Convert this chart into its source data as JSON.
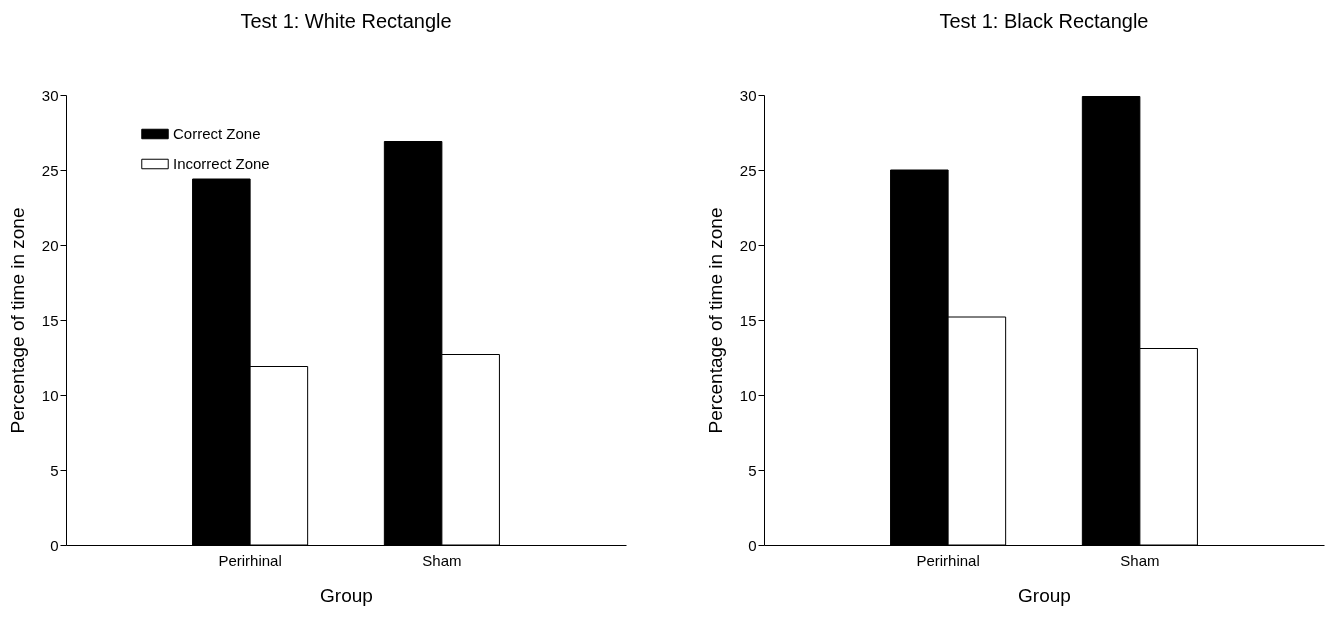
{
  "chart_data": [
    {
      "type": "bar",
      "title": "Test 1: White Rectangle",
      "xlabel": "Group",
      "ylabel": "Percentage of time in zone",
      "categories": [
        "Perirhinal",
        "Sham"
      ],
      "series": [
        {
          "name": "Correct Zone",
          "color": "#000000",
          "values": [
            24.4,
            26.9
          ]
        },
        {
          "name": "Incorrect Zone",
          "color": "#ffffff",
          "values": [
            11.9,
            12.7
          ]
        }
      ],
      "ylim": [
        0,
        30
      ],
      "yticks": [
        0,
        5,
        10,
        15,
        20,
        25,
        30
      ],
      "grid": false,
      "legend": "top left"
    },
    {
      "type": "bar",
      "title": "Test 1: Black Rectangle",
      "xlabel": "Group",
      "ylabel": "Percentage of time in zone",
      "categories": [
        "Perirhinal",
        "Sham"
      ],
      "series": [
        {
          "name": "Correct Zone",
          "color": "#000000",
          "values": [
            25.0,
            29.9
          ]
        },
        {
          "name": "Incorrect Zone",
          "color": "#ffffff",
          "values": [
            15.2,
            13.1
          ]
        }
      ],
      "ylim": [
        0,
        30
      ],
      "yticks": [
        0,
        5,
        10,
        15,
        20,
        25,
        30
      ],
      "grid": false,
      "legend": "top left"
    }
  ]
}
